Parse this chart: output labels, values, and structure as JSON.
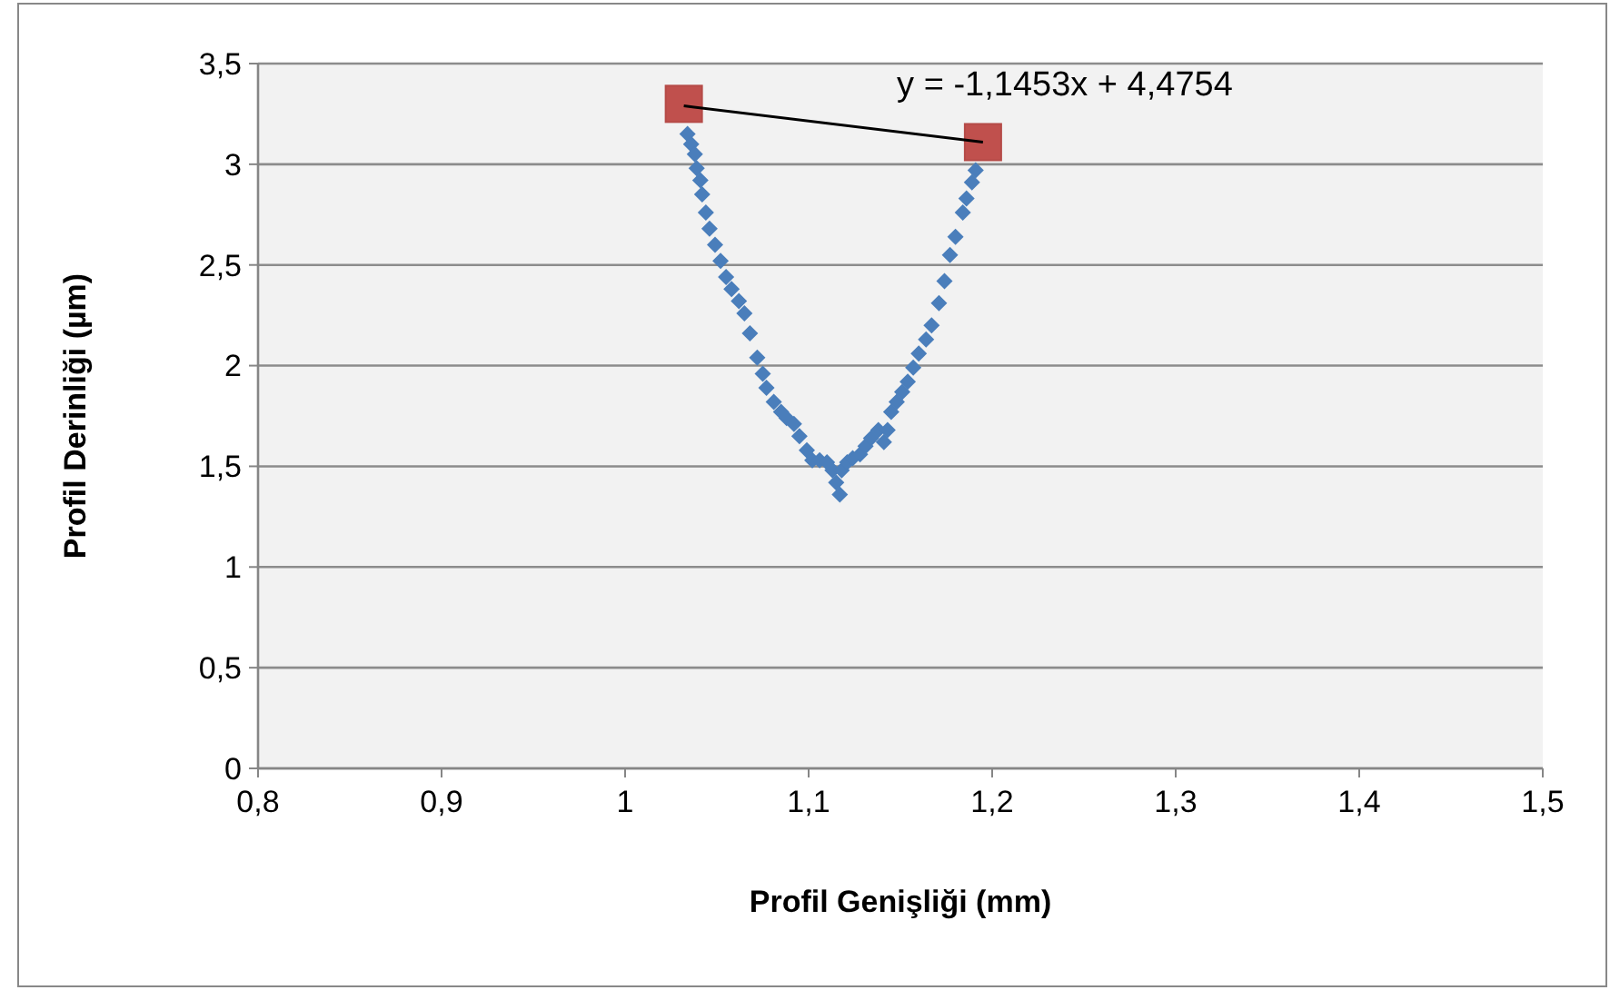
{
  "chart_data": {
    "type": "scatter",
    "xlabel": "Profil Genişliği (mm)",
    "ylabel": "Profil Derinliği (µm)",
    "xlim": [
      0.8,
      1.5
    ],
    "xticks": [
      {
        "value": 0.8,
        "label": "0,8"
      },
      {
        "value": 0.9,
        "label": "0,9"
      },
      {
        "value": 1,
        "label": "1"
      },
      {
        "value": 1.1,
        "label": "1,1"
      },
      {
        "value": 1.2,
        "label": "1,2"
      },
      {
        "value": 1.3,
        "label": "1,3"
      },
      {
        "value": 1.4,
        "label": "1,4"
      },
      {
        "value": 1.5,
        "label": "1,5"
      }
    ],
    "ylim": [
      0,
      3.5
    ],
    "yticks": [
      0,
      {
        "value": 0.5,
        "label": "0,5"
      },
      1,
      {
        "value": 1.5,
        "label": "1,5"
      },
      2,
      {
        "value": 2.5,
        "label": "2,5"
      },
      3,
      {
        "value": 3.5,
        "label": "3,5"
      }
    ],
    "grid": "y",
    "series": [
      {
        "marker": "diamond",
        "color": "#4a7ebb",
        "x": [
          1.034,
          1.036,
          1.038,
          1.039,
          1.041,
          1.042,
          1.044,
          1.046,
          1.049,
          1.052,
          1.055,
          1.058,
          1.062,
          1.065,
          1.068,
          1.072,
          1.075,
          1.077,
          1.081,
          1.085,
          1.088,
          1.092,
          1.095,
          1.099,
          1.102,
          1.106,
          1.11,
          1.113,
          1.115,
          1.117,
          1.118,
          1.121,
          1.124,
          1.128,
          1.131,
          1.134,
          1.138,
          1.141,
          1.143,
          1.145,
          1.148,
          1.151,
          1.154,
          1.157,
          1.16,
          1.164,
          1.167,
          1.171,
          1.174,
          1.177,
          1.18,
          1.184,
          1.186,
          1.189,
          1.191
        ],
        "values": [
          3.15,
          3.1,
          3.05,
          2.98,
          2.92,
          2.85,
          2.76,
          2.68,
          2.6,
          2.52,
          2.44,
          2.38,
          2.32,
          2.26,
          2.16,
          2.04,
          1.96,
          1.89,
          1.82,
          1.77,
          1.74,
          1.71,
          1.65,
          1.58,
          1.53,
          1.53,
          1.52,
          1.48,
          1.42,
          1.36,
          1.48,
          1.52,
          1.54,
          1.56,
          1.6,
          1.64,
          1.68,
          1.62,
          1.68,
          1.77,
          1.82,
          1.87,
          1.92,
          1.99,
          2.06,
          2.13,
          2.2,
          2.31,
          2.42,
          2.55,
          2.64,
          2.76,
          2.83,
          2.91,
          2.97
        ]
      },
      {
        "type": "scatter",
        "marker": "square",
        "color": "#c0504d",
        "x": [
          1.032,
          1.195
        ],
        "values": [
          3.3,
          3.11
        ]
      },
      {
        "type": "line",
        "color": "#000000",
        "x": [
          1.032,
          1.195
        ],
        "values": [
          3.29,
          3.11
        ]
      }
    ],
    "annotations": [
      "y = -1,1453x + 4,4754"
    ]
  }
}
